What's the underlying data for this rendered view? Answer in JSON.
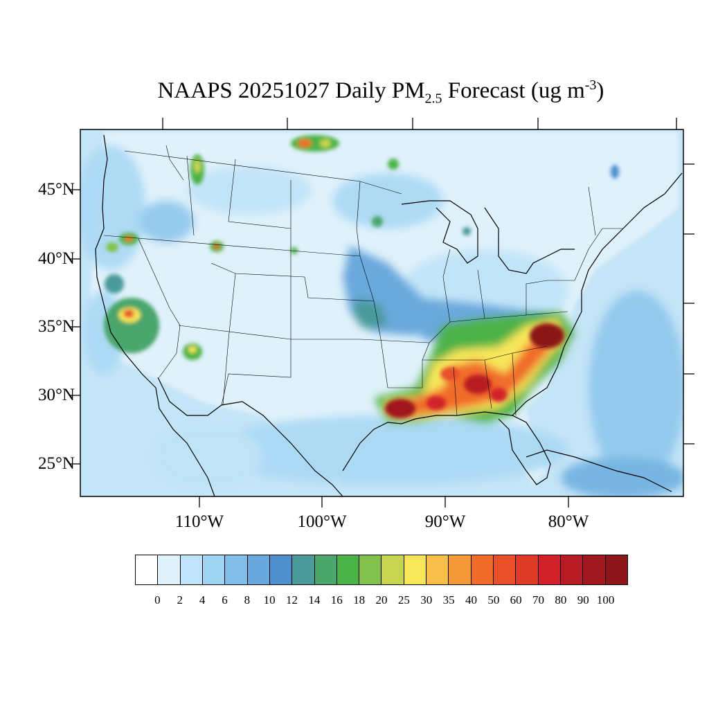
{
  "title": {
    "prefix": "NAAPS 20251027 Daily PM",
    "subscript": "2.5",
    "middle": " Forecast (ug m",
    "superscript": "-3",
    "suffix": ")"
  },
  "map": {
    "type": "filled-contour-map",
    "region": "Contiguous United States",
    "lon_range": [
      -119,
      -71
    ],
    "lat_range": [
      23,
      49
    ],
    "lat_ticks": [
      "45°N",
      "40°N",
      "35°N",
      "30°N",
      "25°N"
    ],
    "lon_ticks": [
      "110°W",
      "100°W",
      "90°W",
      "80°W"
    ],
    "colors": {
      "background_sea": "#dceef9",
      "land_low": "#dff1fb",
      "border": "#000000"
    }
  },
  "colorbar": {
    "labels": [
      "0",
      "2",
      "4",
      "6",
      "8",
      "10",
      "12",
      "14",
      "16",
      "18",
      "20",
      "25",
      "30",
      "35",
      "40",
      "50",
      "60",
      "70",
      "80",
      "90",
      "100"
    ],
    "colors": [
      "#ffffff",
      "#dff1fb",
      "#bfe3f8",
      "#9fd5f3",
      "#82bfe8",
      "#69a8dd",
      "#4f8fcd",
      "#4a9a9b",
      "#4aa66c",
      "#4bb247",
      "#82c24c",
      "#c6d652",
      "#f7e65a",
      "#f7be4a",
      "#f59a3a",
      "#f06c2b",
      "#e8502a",
      "#df3a28",
      "#d12029",
      "#b71b24",
      "#a0191f",
      "#8b1518"
    ]
  }
}
